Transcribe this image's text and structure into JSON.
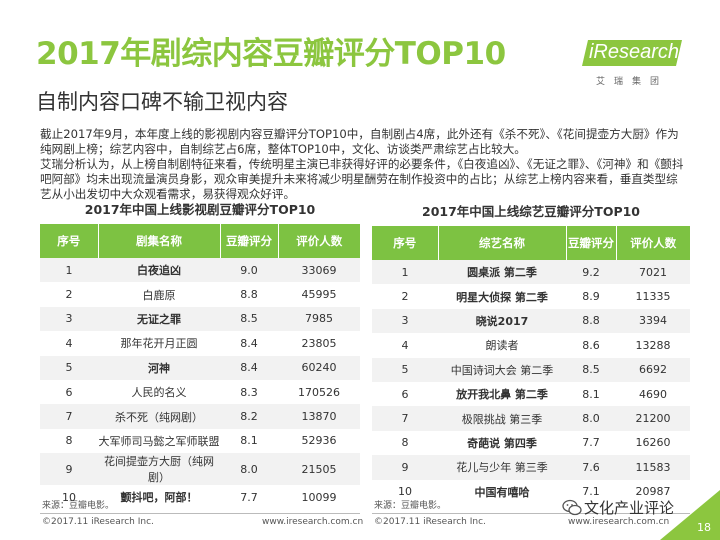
{
  "header": {
    "title": "2017年剧综内容豆瓣评分TOP10",
    "subtitle": "自制内容口碑不输卫视内容"
  },
  "logo": {
    "brand": "iResearch",
    "tagline": "艾瑞集团"
  },
  "intro": {
    "paragraph1": "截止2017年9月，本年度上线的影视剧内容豆瓣评分TOP10中，自制剧占4席，此外还有《杀不死》、《花间提壶方大厨》作为纯网剧上榜；综艺内容中，自制综艺占6席，整体TOP10中，文化、访谈类严肃综艺占比较大。",
    "paragraph2": "艾瑞分析认为，从上榜自制剧特征来看，传统明星主演已非获得好评的必要条件，《白夜追凶》、《无证之罪》、《河神》和《颤抖吧阿部》均未出现流量演员身影，观众审美提升未来将减少明星酬劳在制作投资中的占比；从综艺上榜内容来看，垂直类型综艺从小出发切中大众观看需求，易获得观众好评。"
  },
  "drama_table": {
    "title": "2017年中国上线影视剧豆瓣评分TOP10",
    "columns": [
      "序号",
      "剧集名称",
      "豆瓣评分",
      "评价人数"
    ],
    "rows": [
      {
        "rank": "1",
        "name": "白夜追凶",
        "score": "9.0",
        "votes": "33069",
        "bold": true
      },
      {
        "rank": "2",
        "name": "白鹿原",
        "score": "8.8",
        "votes": "45995",
        "bold": false
      },
      {
        "rank": "3",
        "name": "无证之罪",
        "score": "8.5",
        "votes": "7985",
        "bold": true
      },
      {
        "rank": "4",
        "name": "那年花开月正圆",
        "score": "8.4",
        "votes": "23805",
        "bold": false
      },
      {
        "rank": "5",
        "name": "河神",
        "score": "8.4",
        "votes": "60240",
        "bold": true
      },
      {
        "rank": "6",
        "name": "人民的名义",
        "score": "8.3",
        "votes": "170526",
        "bold": false
      },
      {
        "rank": "7",
        "name": "杀不死（纯网剧）",
        "score": "8.2",
        "votes": "13870",
        "bold": false
      },
      {
        "rank": "8",
        "name": "大军师司马懿之军师联盟",
        "score": "8.1",
        "votes": "52936",
        "bold": false
      },
      {
        "rank": "9",
        "name": "花间提壶方大厨（纯网剧）",
        "score": "8.0",
        "votes": "21505",
        "bold": false
      },
      {
        "rank": "10",
        "name": "颤抖吧，阿部！",
        "score": "7.7",
        "votes": "10099",
        "bold": true
      }
    ],
    "source": "来源：豆瓣电影。"
  },
  "variety_table": {
    "title": "2017年中国上线综艺豆瓣评分TOP10",
    "columns": [
      "序号",
      "综艺名称",
      "豆瓣评分",
      "评价人数"
    ],
    "rows": [
      {
        "rank": "1",
        "name": "圆桌派 第二季",
        "score": "9.2",
        "votes": "7021",
        "bold": true
      },
      {
        "rank": "2",
        "name": "明星大侦探 第二季",
        "score": "8.9",
        "votes": "11335",
        "bold": true
      },
      {
        "rank": "3",
        "name": "晓说2017",
        "score": "8.8",
        "votes": "3394",
        "bold": true
      },
      {
        "rank": "4",
        "name": "朗读者",
        "score": "8.6",
        "votes": "13288",
        "bold": false
      },
      {
        "rank": "5",
        "name": "中国诗词大会 第二季",
        "score": "8.5",
        "votes": "6692",
        "bold": false
      },
      {
        "rank": "6",
        "name": "放开我北鼻 第二季",
        "score": "8.1",
        "votes": "4690",
        "bold": true
      },
      {
        "rank": "7",
        "name": "极限挑战 第三季",
        "score": "8.0",
        "votes": "21200",
        "bold": false
      },
      {
        "rank": "8",
        "name": "奇葩说 第四季",
        "score": "7.7",
        "votes": "16260",
        "bold": true
      },
      {
        "rank": "9",
        "name": "花儿与少年 第三季",
        "score": "7.6",
        "votes": "11583",
        "bold": false
      },
      {
        "rank": "10",
        "name": "中国有嘻哈",
        "score": "7.1",
        "votes": "20987",
        "bold": true
      }
    ],
    "source": "来源：豆瓣电影。"
  },
  "footer": {
    "left_copyright": "©2017.11 iResearch Inc.",
    "left_url": "www.iresearch.com.cn",
    "right_copyright": "©2017.11 iResearch Inc.",
    "right_url": "www.iresearch.com.cn",
    "watermark": "文化产业评论",
    "page_number": "18"
  },
  "colors": {
    "accent_green": "#8cc63f",
    "header_green": "#7dc242",
    "row_stripe": "#f2f2f2"
  }
}
